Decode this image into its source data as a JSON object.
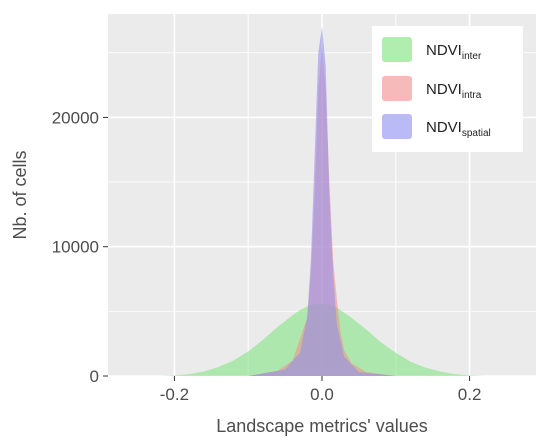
{
  "chart_data": {
    "type": "histogram",
    "title": "",
    "xlabel": "Landscape metrics' values",
    "ylabel": "Nb. of cells",
    "xlim": [
      -0.29,
      0.29
    ],
    "ylim": [
      0,
      28000
    ],
    "x_ticks": [
      {
        "value": -0.2,
        "label": "-0.2"
      },
      {
        "value": 0.0,
        "label": "0.0"
      },
      {
        "value": 0.2,
        "label": "0.2"
      }
    ],
    "y_ticks": [
      {
        "value": 0,
        "label": "0"
      },
      {
        "value": 10000,
        "label": "10000"
      },
      {
        "value": 20000,
        "label": "20000"
      }
    ],
    "grid": true,
    "legend_position": "top-right",
    "series": [
      {
        "name_main": "NDVI",
        "name_sub": "inter",
        "color": "#7be37b",
        "opacity": 0.55,
        "x": [
          -0.22,
          -0.2,
          -0.18,
          -0.16,
          -0.14,
          -0.12,
          -0.1,
          -0.08,
          -0.06,
          -0.04,
          -0.03,
          -0.02,
          -0.01,
          0.0,
          0.01,
          0.02,
          0.03,
          0.04,
          0.06,
          0.08,
          0.1,
          0.12,
          0.14,
          0.16,
          0.18,
          0.2,
          0.22
        ],
        "y": [
          0,
          50,
          150,
          350,
          700,
          1200,
          1900,
          2800,
          3800,
          4700,
          5100,
          5400,
          5550,
          5600,
          5500,
          5300,
          4900,
          4500,
          3600,
          2600,
          1800,
          1100,
          650,
          350,
          150,
          50,
          0
        ]
      },
      {
        "name_main": "NDVI",
        "name_sub": "intra",
        "color": "#f08c8c",
        "opacity": 0.55,
        "x": [
          -0.1,
          -0.06,
          -0.04,
          -0.02,
          -0.015,
          -0.01,
          -0.005,
          0.0,
          0.005,
          0.01,
          0.015,
          0.02,
          0.025,
          0.03,
          0.04,
          0.06,
          0.1
        ],
        "y": [
          0,
          400,
          1200,
          4500,
          8000,
          14000,
          22000,
          25500,
          22000,
          15000,
          9000,
          6000,
          3500,
          2000,
          1000,
          300,
          0
        ]
      },
      {
        "name_main": "NDVI",
        "name_sub": "spatial",
        "color": "#8c8cf0",
        "opacity": 0.55,
        "x": [
          -0.1,
          -0.05,
          -0.03,
          -0.02,
          -0.015,
          -0.01,
          -0.005,
          0.0,
          0.005,
          0.01,
          0.015,
          0.02,
          0.03,
          0.05,
          0.1
        ],
        "y": [
          0,
          500,
          1800,
          4500,
          9000,
          17000,
          25000,
          27000,
          24000,
          14000,
          8000,
          4000,
          1500,
          300,
          0
        ]
      }
    ]
  }
}
